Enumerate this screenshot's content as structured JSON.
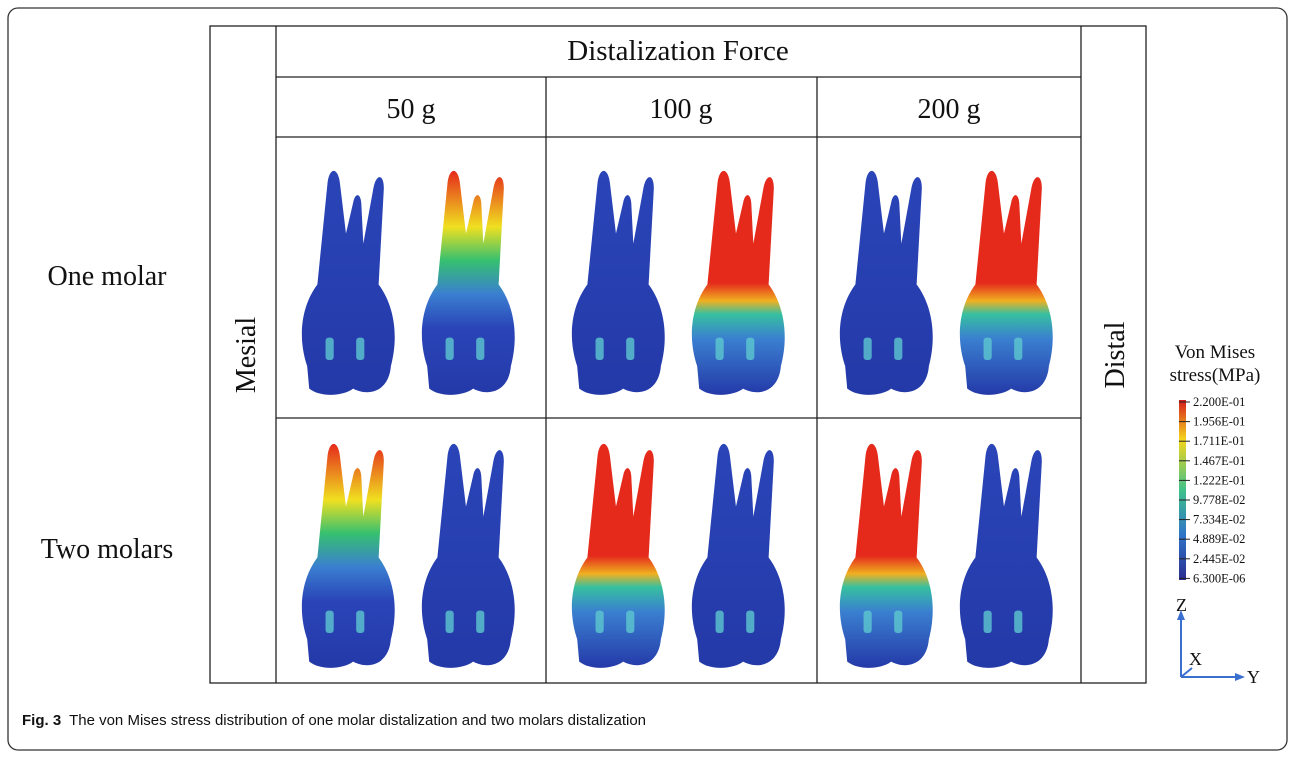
{
  "table": {
    "header": "Distalization Force",
    "columns": [
      "50 g",
      "100 g",
      "200 g"
    ],
    "rows": [
      "One molar",
      "Two molars"
    ],
    "left_label": "Mesial",
    "right_label": "Distal"
  },
  "legend": {
    "title_lines": [
      "Von Mises",
      "stress(MPa)"
    ],
    "labels": [
      "2.200E-01",
      "1.956E-01",
      "1.711E-01",
      "1.467E-01",
      "1.222E-01",
      "9.778E-02",
      "7.334E-02",
      "4.889E-02",
      "2.445E-02",
      "6.300E-06"
    ],
    "axes": [
      "Z",
      "X",
      "Y"
    ]
  },
  "caption": {
    "label": "Fig. 3",
    "text": "The von Mises stress distribution of one molar distalization and two molars distalization"
  }
}
